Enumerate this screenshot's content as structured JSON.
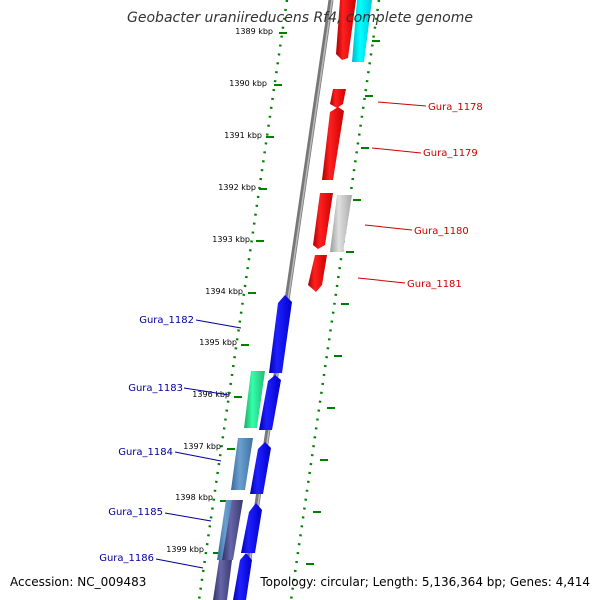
{
  "title": "Geobacter uraniireducens Rf4, complete genome",
  "accession_label": "Accession: NC_009483",
  "topology_label": "Topology: circular; Length: 5,136,364 bp; Genes: 4,414",
  "colors": {
    "forward": "#ff0000",
    "reverse": "#0000ff",
    "forward_label": "#cc0000",
    "reverse_label": "#000099",
    "backbone": "#888888",
    "ticks": "#008000"
  },
  "scale": {
    "unit": "kbp",
    "ticks": [
      "1389 kbp",
      "1390 kbp",
      "1391 kbp",
      "1392 kbp",
      "1393 kbp",
      "1394 kbp",
      "1395 kbp",
      "1396 kbp",
      "1397 kbp",
      "1398 kbp",
      "1399 kbp"
    ]
  },
  "genes": {
    "forward": [
      {
        "name": "Gura_1178",
        "color": "#ff0000"
      },
      {
        "name": "Gura_1179",
        "color": "#ff0000"
      },
      {
        "name": "Gura_1180",
        "color": "#ff0000"
      },
      {
        "name": "Gura_1181",
        "color": "#ff0000"
      }
    ],
    "reverse": [
      {
        "name": "Gura_1182",
        "color": "#0000ff"
      },
      {
        "name": "Gura_1183",
        "color": "#0000ff"
      },
      {
        "name": "Gura_1184",
        "color": "#0000ff"
      },
      {
        "name": "Gura_1185",
        "color": "#0000ff"
      },
      {
        "name": "Gura_1186",
        "color": "#0000ff"
      }
    ]
  }
}
